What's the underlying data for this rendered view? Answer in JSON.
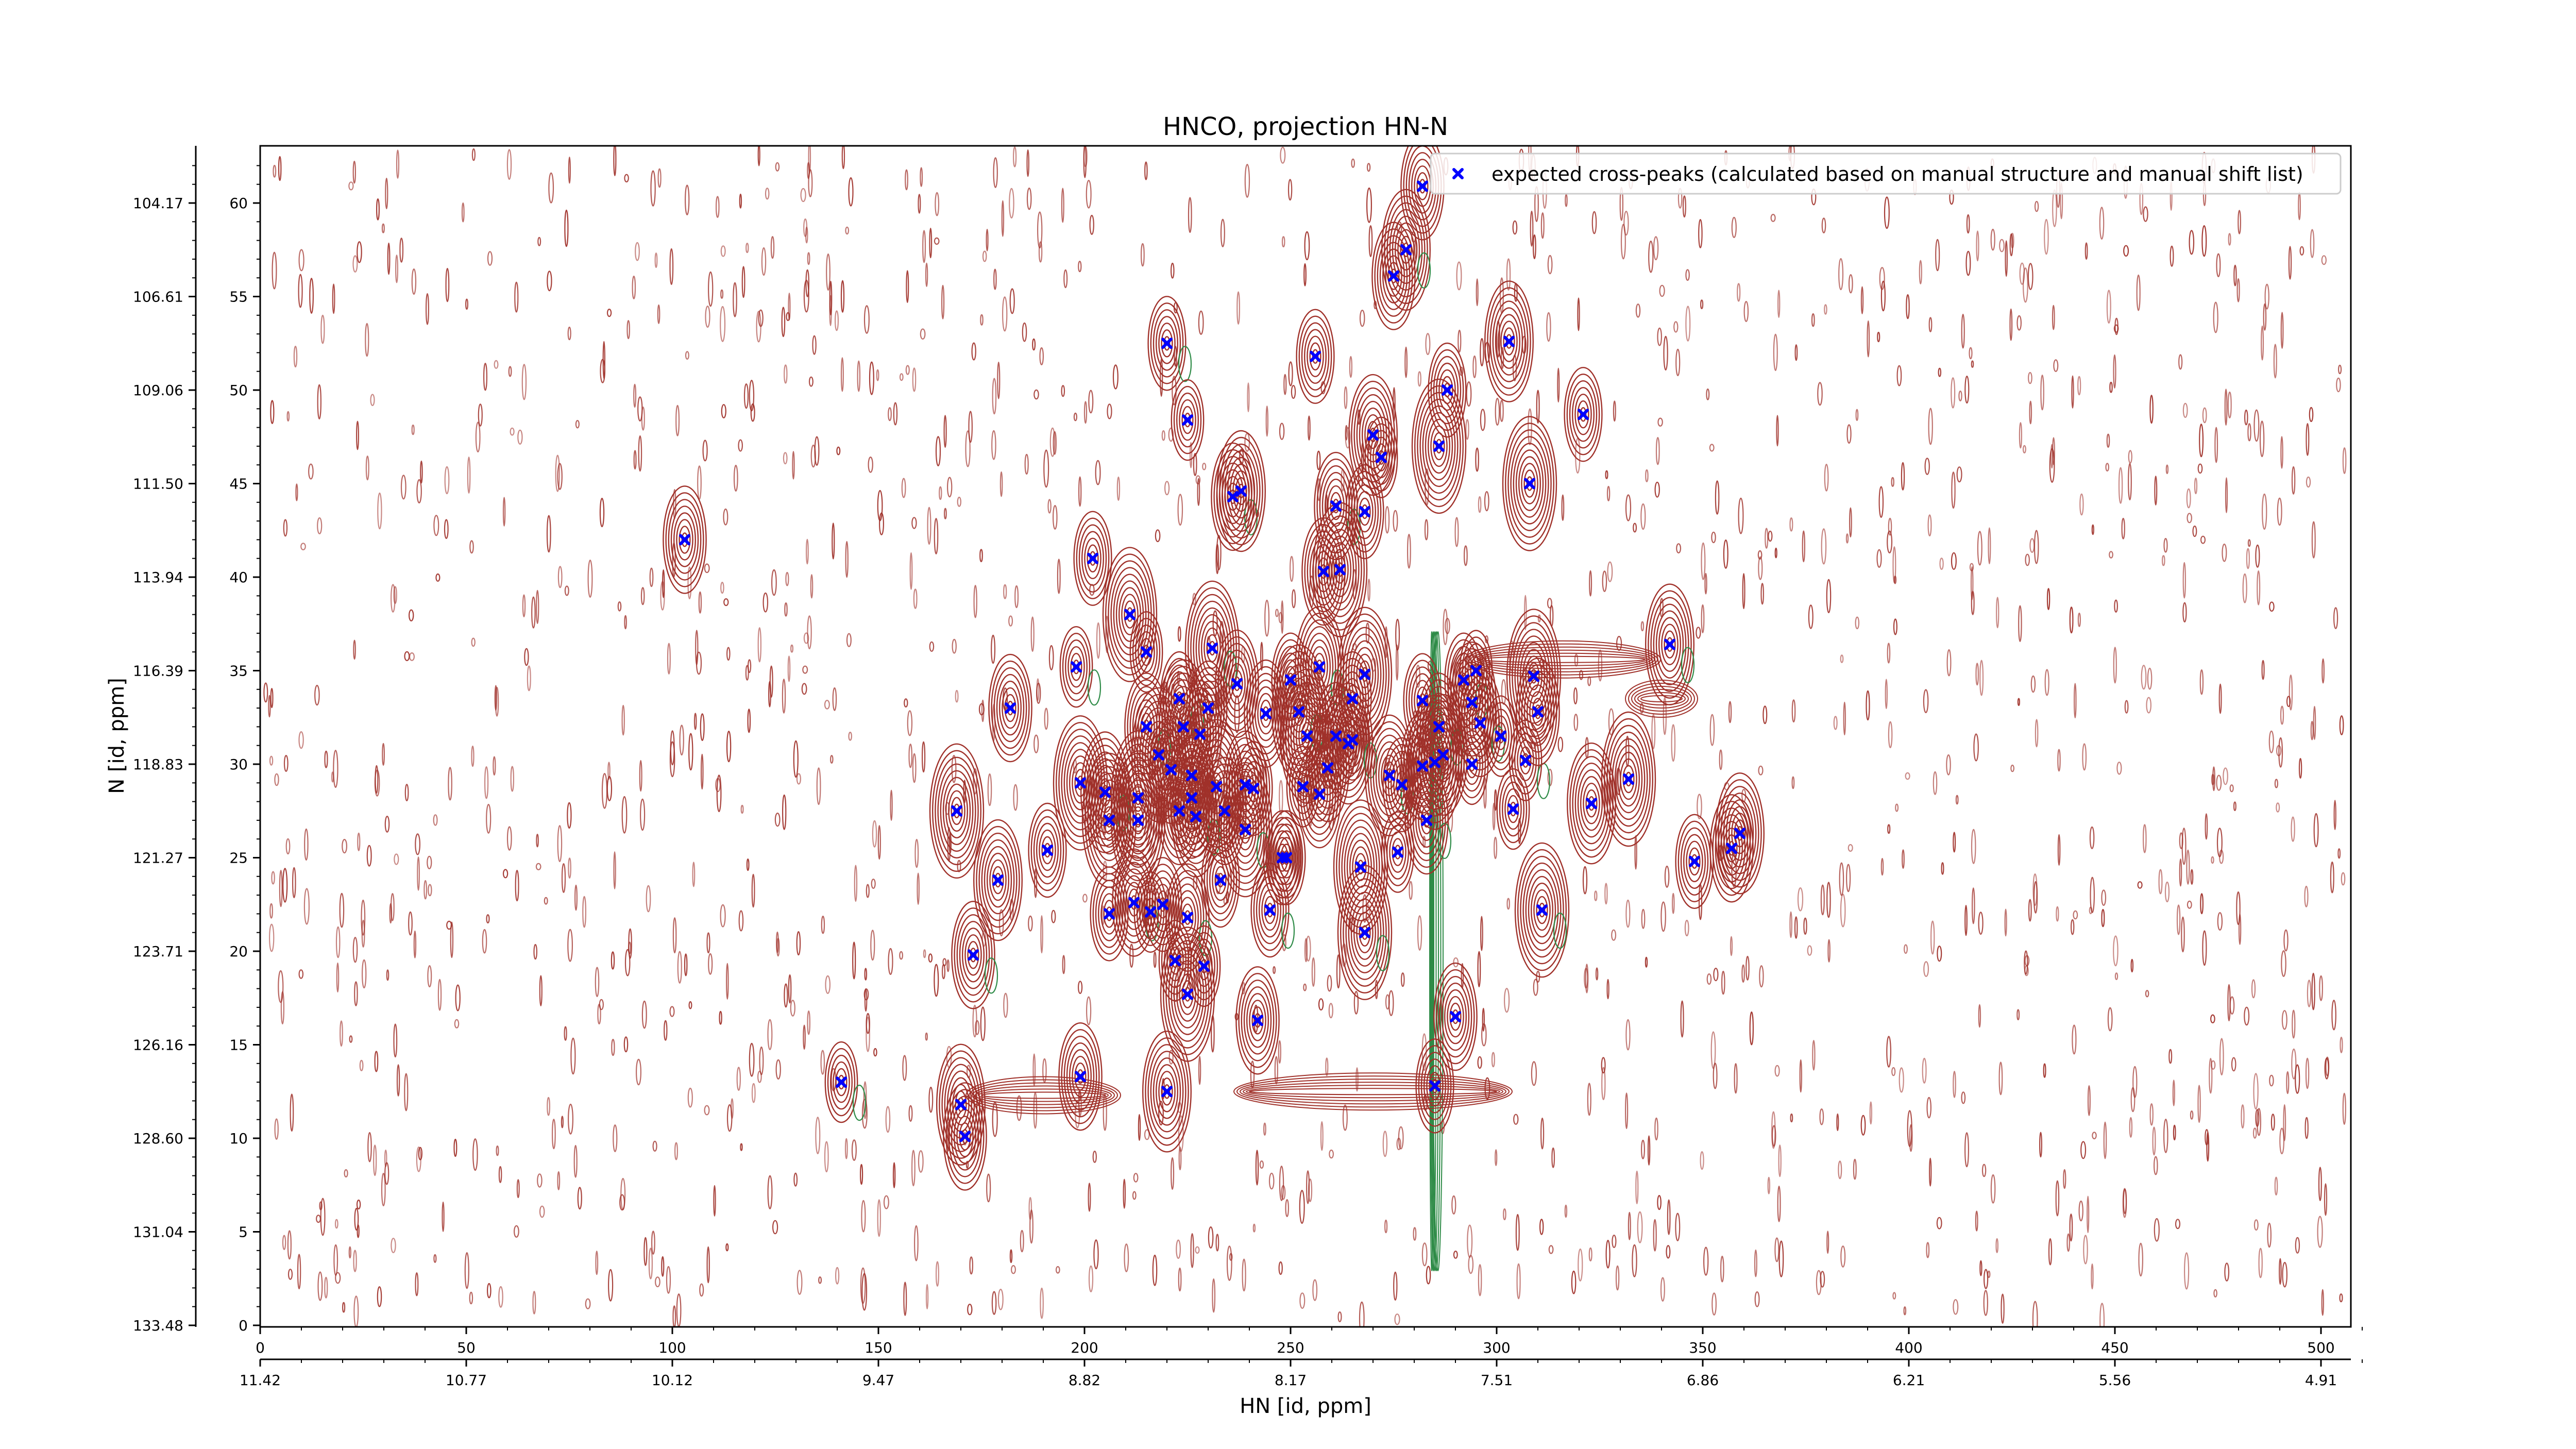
{
  "chart_data": {
    "type": "scatter",
    "title": "HNCO, projection HN-N",
    "xlabel": "HN [id, ppm]",
    "ylabel": "N [id, ppm]",
    "xlim": [
      0,
      511
    ],
    "ylim": [
      0,
      63
    ],
    "x_ticks": [
      "0",
      "50",
      "100",
      "150",
      "200",
      "250",
      "300",
      "350",
      "400",
      "450",
      "500"
    ],
    "y_ticks": [
      "0",
      "5",
      "10",
      "15",
      "20",
      "25",
      "30",
      "35",
      "40",
      "45",
      "50",
      "55",
      "60"
    ],
    "ppm_x_ticks": [
      "11.42",
      "10.77",
      "10.12",
      "9.47",
      "8.82",
      "8.17",
      "7.51",
      "6.86",
      "6.21",
      "5.56",
      "4.91"
    ],
    "ppm_y_ticks": [
      "133.48",
      "131.04",
      "128.60",
      "126.16",
      "123.71",
      "121.27",
      "118.83",
      "116.39",
      "113.94",
      "111.50",
      "109.06",
      "106.61",
      "104.17"
    ],
    "grid": false,
    "legend_position": "top-right",
    "series": [
      {
        "name": "expected cross-peaks (calculated based on manual structure and manual shift list)",
        "color": "#0000ff",
        "marker": "x",
        "points": [
          [
            103,
            42
          ],
          [
            141,
            13
          ],
          [
            169,
            27.5
          ],
          [
            170,
            11.8
          ],
          [
            171,
            10.1
          ],
          [
            173,
            19.8
          ],
          [
            179,
            23.8
          ],
          [
            182,
            33
          ],
          [
            191,
            25.4
          ],
          [
            198,
            35.2
          ],
          [
            199,
            29
          ],
          [
            199,
            13.3
          ],
          [
            202,
            41
          ],
          [
            205,
            28.5
          ],
          [
            206,
            27
          ],
          [
            206,
            22
          ],
          [
            211,
            38
          ],
          [
            212,
            22.6
          ],
          [
            213,
            28.2
          ],
          [
            213,
            27
          ],
          [
            215,
            36
          ],
          [
            215,
            32
          ],
          [
            216,
            22.1
          ],
          [
            218,
            30.5
          ],
          [
            219,
            22.5
          ],
          [
            220,
            52.5
          ],
          [
            220,
            12.5
          ],
          [
            221,
            29.7
          ],
          [
            222,
            19.5
          ],
          [
            223,
            33.5
          ],
          [
            223,
            27.5
          ],
          [
            224,
            32
          ],
          [
            225,
            48.4
          ],
          [
            225,
            21.8
          ],
          [
            225,
            17.7
          ],
          [
            226,
            29.4
          ],
          [
            226,
            28.2
          ],
          [
            227,
            27.2
          ],
          [
            228,
            31.6
          ],
          [
            229,
            19.2
          ],
          [
            230,
            33
          ],
          [
            231,
            36.2
          ],
          [
            232,
            28.8
          ],
          [
            233,
            23.8
          ],
          [
            234,
            27.5
          ],
          [
            236,
            44.3
          ],
          [
            237,
            34.3
          ],
          [
            238,
            44.6
          ],
          [
            239,
            28.9
          ],
          [
            239,
            26.5
          ],
          [
            241,
            28.7
          ],
          [
            242,
            16.3
          ],
          [
            244,
            32.7
          ],
          [
            245,
            22.2
          ],
          [
            248,
            25
          ],
          [
            249,
            25
          ],
          [
            250,
            34.5
          ],
          [
            252,
            32.8
          ],
          [
            253,
            28.8
          ],
          [
            254,
            31.5
          ],
          [
            256,
            51.8
          ],
          [
            257,
            35.2
          ],
          [
            257,
            28.4
          ],
          [
            258,
            40.3
          ],
          [
            259,
            29.8
          ],
          [
            261,
            43.8
          ],
          [
            261,
            31.5
          ],
          [
            262,
            40.4
          ],
          [
            264,
            31.1
          ],
          [
            265,
            31.3
          ],
          [
            265,
            33.5
          ],
          [
            267,
            24.5
          ],
          [
            268,
            34.8
          ],
          [
            268,
            21
          ],
          [
            268,
            43.5
          ],
          [
            270,
            47.6
          ],
          [
            272,
            46.4
          ],
          [
            274,
            29.4
          ],
          [
            275,
            56.1
          ],
          [
            276,
            25.3
          ],
          [
            277,
            28.9
          ],
          [
            278,
            57.5
          ],
          [
            282,
            60.9
          ],
          [
            282,
            33.4
          ],
          [
            282,
            29.9
          ],
          [
            283,
            27
          ],
          [
            285,
            30.1
          ],
          [
            285,
            12.8
          ],
          [
            286,
            47
          ],
          [
            286,
            32
          ],
          [
            287,
            30.5
          ],
          [
            288,
            50
          ],
          [
            290,
            16.5
          ],
          [
            292,
            34.5
          ],
          [
            294,
            33.3
          ],
          [
            294,
            30
          ],
          [
            295,
            35
          ],
          [
            296,
            32.2
          ],
          [
            301,
            31.5
          ],
          [
            303,
            52.6
          ],
          [
            304,
            27.6
          ],
          [
            307,
            30.2
          ],
          [
            308,
            45
          ],
          [
            309,
            34.7
          ],
          [
            310,
            32.8
          ],
          [
            311,
            22.2
          ],
          [
            321,
            48.7
          ],
          [
            323,
            27.9
          ],
          [
            332,
            29.2
          ],
          [
            342,
            36.4
          ],
          [
            348,
            24.8
          ],
          [
            357,
            25.5
          ],
          [
            359,
            26.3
          ]
        ]
      }
    ],
    "contours": {
      "positive_color": "#a0312a",
      "negative_color": "#2e8b47"
    }
  }
}
